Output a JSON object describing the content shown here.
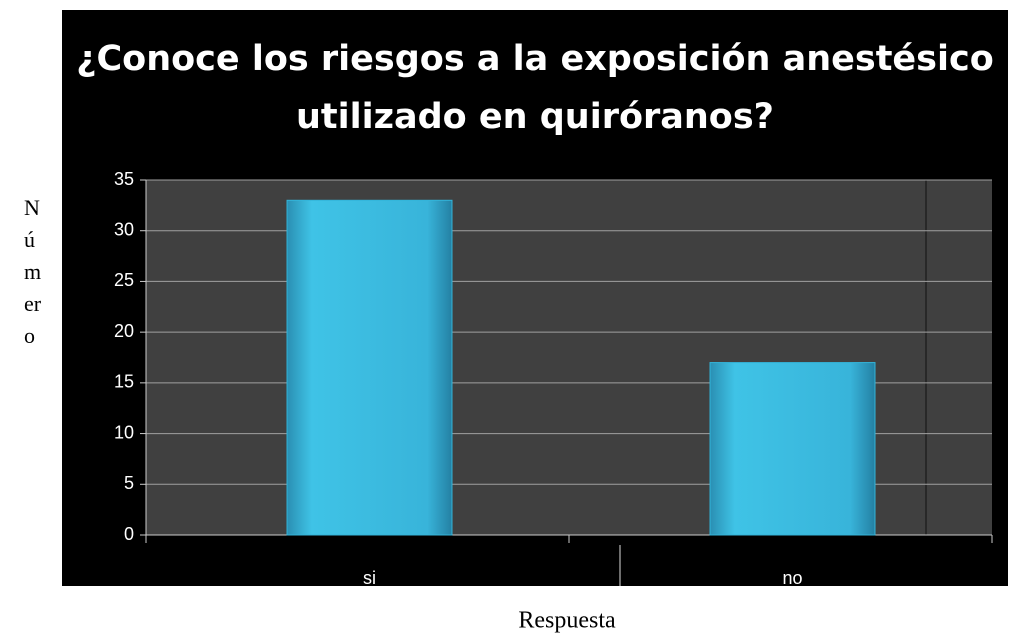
{
  "chart_data": {
    "type": "bar",
    "title": "¿Conoce los riesgos a la exposición anestésico utilizado en quiróranos?",
    "categories": [
      "si",
      "no"
    ],
    "values": [
      33,
      17
    ],
    "color": "#33b5da",
    "ylim": [
      0,
      35
    ],
    "yticks": [
      0,
      5,
      10,
      15,
      20,
      25,
      30,
      35
    ],
    "grid": true,
    "y_label": "Número",
    "x_label": "Respuesta"
  }
}
